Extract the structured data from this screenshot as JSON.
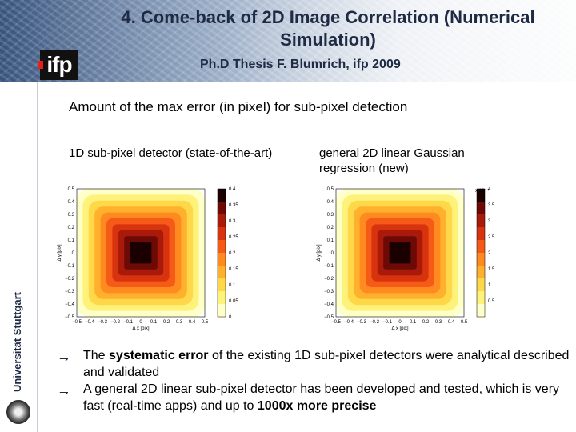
{
  "slide": {
    "title": "4. Come-back of 2D Image Correlation (Numerical Simulation)",
    "subtitle": "Ph.D Thesis F. Blumrich, ifp 2009",
    "logo_text": "ifp",
    "university": "Universität Stuttgart"
  },
  "heading": "Amount of the max error (in pixel) for sub-pixel detection",
  "left_plot": {
    "caption": "1D sub-pixel detector (state-of-the-art)",
    "xlabel": "Δ x [pix]",
    "ylabel": "Δ y [pix]",
    "x_ticks": [
      "−0.5",
      "−0.4",
      "−0.3",
      "−0.2",
      "−0.1",
      "0",
      "0.1",
      "0.2",
      "0.3",
      "0.4",
      "0.5"
    ],
    "y_ticks": [
      "0.5",
      "0.4",
      "0.3",
      "0.2",
      "0.1",
      "0",
      "−0.1",
      "−0.2",
      "−0.3",
      "−0.4",
      "−0.5"
    ],
    "colorbar_ticks": [
      "0.4",
      "0.35",
      "0.3",
      "0.25",
      "0.2",
      "0.15",
      "0.1",
      "0.05",
      "0"
    ],
    "colorbar_range": [
      0,
      0.4
    ]
  },
  "right_plot": {
    "caption": "general 2D linear Gaussian regression (new)",
    "xlabel": "Δ x [pix]",
    "ylabel": "Δ y [pix]",
    "x_ticks": [
      "−0.5",
      "−0.4",
      "−0.3",
      "−0.2",
      "−0.1",
      "0",
      "0.1",
      "0.2",
      "0.3",
      "0.4",
      "0.5"
    ],
    "y_ticks": [
      "0.5",
      "0.4",
      "0.3",
      "0.2",
      "0.1",
      "0",
      "−0.1",
      "−0.2",
      "−0.3",
      "−0.4",
      "−0.5"
    ],
    "colorbar_multiplier": "x 10⁻⁴",
    "colorbar_ticks": [
      "4",
      "3.5",
      "3",
      "2.5",
      "2",
      "1.5",
      "1",
      "0.5"
    ],
    "colorbar_range": [
      0,
      4
    ]
  },
  "bullets": [
    {
      "pre": "The ",
      "bold": "systematic error",
      "post": " of the existing 1D sub-pixel detectors were analytical described and validated"
    },
    {
      "pre": "A general 2D linear sub-pixel detector has been developed and tested, which is very fast (real-time apps) and up to ",
      "bold": "1000x more precise",
      "post": ""
    }
  ],
  "colors": {
    "header_dark": "#3d5a86",
    "title_text": "#1f2a44",
    "logo_red": "#e32119"
  }
}
